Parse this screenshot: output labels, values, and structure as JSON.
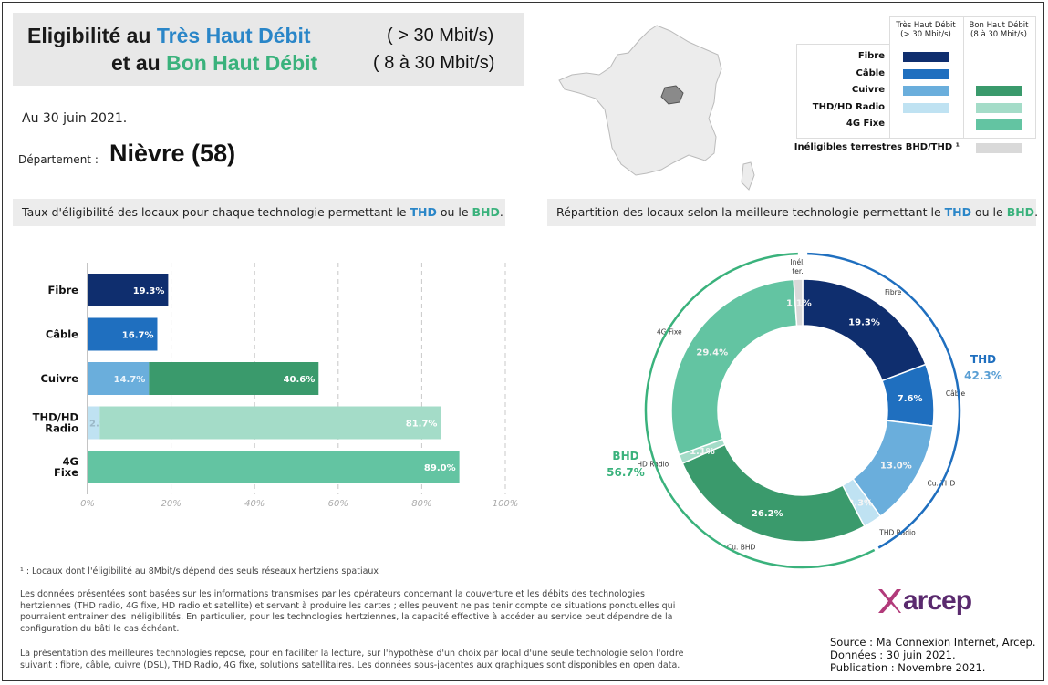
{
  "header": {
    "line1_prefix": "Eligibilité au",
    "line1_tech": "Très Haut Débit",
    "line1_speed": "( > 30 Mbit/s)",
    "line2_prefix": "et au",
    "line2_tech": "Bon Haut Débit",
    "line2_speed": "( 8 à 30 Mbit/s)"
  },
  "date": "Au 30 juin 2021.",
  "department": {
    "label": "Département  :",
    "value": "Nièvre (58)"
  },
  "legend": {
    "col1": [
      "Très Haut Débit",
      "(> 30 Mbit/s)"
    ],
    "col2": [
      "Bon Haut Débit",
      "(8 à 30 Mbit/s)"
    ],
    "rows": [
      {
        "label": "Fibre",
        "thd": "#0f2e6e",
        "bhd": ""
      },
      {
        "label": "Câble",
        "thd": "#1f6fbf",
        "bhd": ""
      },
      {
        "label": "Cuivre",
        "thd": "#6aaedc",
        "bhd": "#3a9a6c"
      },
      {
        "label": "THD/HD Radio",
        "thd": "#bfe2f2",
        "bhd": "#a4dcc8"
      },
      {
        "label": "4G Fixe",
        "thd": "",
        "bhd": "#63c4a2"
      }
    ],
    "inelig_label": "Inéligibles terrestres BHD/THD ¹",
    "inelig_color": "#d9d9d9"
  },
  "left_section": {
    "prefix": "Taux d'éligibilité des locaux pour chaque technologie permettant le",
    "thd": "THD",
    "mid": "ou le",
    "bhd": "BHD",
    "suffix": "."
  },
  "right_section": {
    "prefix": "Répartition des locaux selon la meilleure technologie permettant le",
    "thd": "THD",
    "mid": "ou le",
    "bhd": "BHD",
    "suffix": "."
  },
  "chart_data": [
    {
      "type": "bar",
      "orientation": "horizontal",
      "stacked": true,
      "categories": [
        "Fibre",
        "Câble",
        "Cuivre",
        "THD/HD Radio",
        "4G Fixe"
      ],
      "series": [
        {
          "name": "THD",
          "values": [
            19.3,
            16.7,
            14.7,
            2.9,
            null
          ],
          "labels": [
            "19.3%",
            "16.7%",
            "14.7%",
            "2.9%",
            ""
          ],
          "colors": [
            "#0f2e6e",
            "#1f6fbf",
            "#6aaedc",
            "#bfe2f2",
            ""
          ]
        },
        {
          "name": "BHD",
          "values": [
            null,
            null,
            40.6,
            81.7,
            89.0
          ],
          "labels": [
            "",
            "",
            "40.6%",
            "81.7%",
            "89.0%"
          ],
          "colors": [
            "",
            "",
            "#3a9a6c",
            "#a4dcc8",
            "#63c4a2"
          ]
        }
      ],
      "xlim": [
        0,
        100
      ],
      "xticks": [
        "0%",
        "20%",
        "40%",
        "60%",
        "80%",
        "100%"
      ],
      "grid": true
    },
    {
      "type": "pie",
      "donut": true,
      "slices": [
        {
          "label": "Fibre",
          "value": 19.3,
          "text": "19.3%",
          "color": "#0f2e6e"
        },
        {
          "label": "Câble",
          "value": 7.6,
          "text": "7.6%",
          "color": "#1f6fbf"
        },
        {
          "label": "Cu. THD",
          "value": 13.0,
          "text": "13.0%",
          "color": "#6aaedc"
        },
        {
          "label": "THD Radio",
          "value": 2.3,
          "text": "2.3%",
          "color": "#bfe2f2"
        },
        {
          "label": "Cu. BHD",
          "value": 26.2,
          "text": "26.2%",
          "color": "#3a9a6c"
        },
        {
          "label": "HD Radio",
          "value": 1.1,
          "text": "1.1%",
          "color": "#a4dcc8"
        },
        {
          "label": "4G Fixe",
          "value": 29.4,
          "text": "29.4%",
          "color": "#63c4a2"
        },
        {
          "label": "Inél. ter.",
          "value": 1.1,
          "text": "1.1%",
          "color": "#d9d9d9"
        }
      ],
      "groups": [
        {
          "name": "THD",
          "value": "42.3%",
          "color": "#1f6fbf"
        },
        {
          "name": "BHD",
          "value": "56.7%",
          "color": "#3ab27c"
        }
      ]
    }
  ],
  "footnotes": {
    "note1": "¹ : Locaux dont l'éligibilité au 8Mbit/s dépend des seuls réseaux hertziens spatiaux",
    "para1": "Les données présentées sont basées sur les informations transmises par les opérateurs concernant la couverture et les débits des technologies hertziennes (THD radio, 4G fixe, HD radio et satellite) et servant à produire les cartes ; elles peuvent ne pas tenir compte de situations ponctuelles qui pourraient entrainer des inéligibilités. En particulier, pour les technologies hertziennes, la capacité effective à accéder au service peut dépendre de la configuration du bâti le cas échéant.",
    "para2": "La présentation des meilleures technologies repose, pour en faciliter la lecture, sur l'hypothèse d'un choix par local d'une seule technologie selon l'ordre suivant : fibre, câble, cuivre (DSL), THD Radio, 4G fixe, solutions satellitaires. Les données sous-jacentes aux graphiques sont disponibles en open data."
  },
  "logo": "arcep",
  "source": {
    "line1": "Source : Ma Connexion Internet, Arcep.",
    "line2": "Données : 30 juin 2021.",
    "line3": "Publication : Novembre 2021."
  }
}
